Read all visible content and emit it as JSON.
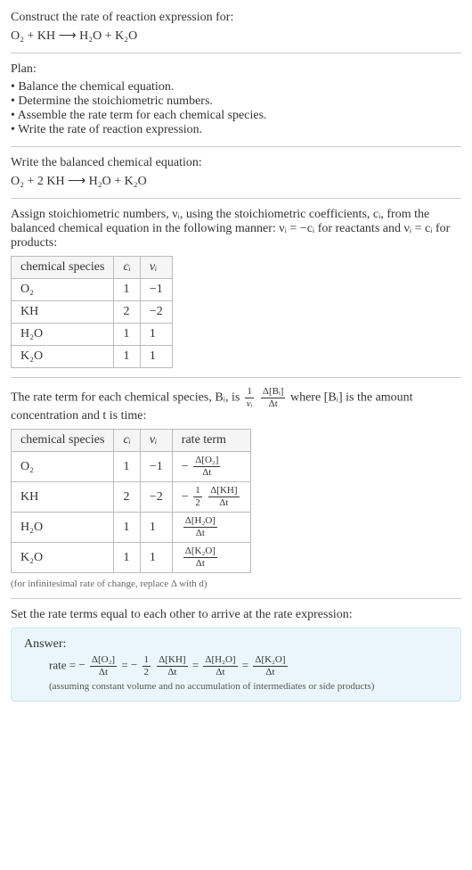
{
  "intro": {
    "line1": "Construct the rate of reaction expression for:",
    "equation": "O₂ + KH ⟶ H₂O + K₂O"
  },
  "plan": {
    "heading": "Plan:",
    "items": [
      "Balance the chemical equation.",
      "Determine the stoichiometric numbers.",
      "Assemble the rate term for each chemical species.",
      "Write the rate of reaction expression."
    ]
  },
  "balanced": {
    "heading": "Write the balanced chemical equation:",
    "equation": "O₂ + 2 KH ⟶ H₂O + K₂O"
  },
  "stoich": {
    "text1": "Assign stoichiometric numbers, νᵢ, using the stoichiometric coefficients, cᵢ, from the balanced chemical equation in the following manner: νᵢ = −cᵢ for reactants and νᵢ = cᵢ for products:",
    "headers": [
      "chemical species",
      "cᵢ",
      "νᵢ"
    ],
    "rows": [
      [
        "O₂",
        "1",
        "−1"
      ],
      [
        "KH",
        "2",
        "−2"
      ],
      [
        "H₂O",
        "1",
        "1"
      ],
      [
        "K₂O",
        "1",
        "1"
      ]
    ]
  },
  "rateterm": {
    "text_a": "The rate term for each chemical species, Bᵢ, is ",
    "frac1_num": "1",
    "frac1_den": "νᵢ",
    "frac2_num": "Δ[Bᵢ]",
    "frac2_den": "Δt",
    "text_b": " where [Bᵢ] is the amount concentration and t is time:",
    "headers": [
      "chemical species",
      "cᵢ",
      "νᵢ",
      "rate term"
    ],
    "rows": [
      {
        "sp": "O₂",
        "c": "1",
        "v": "−1",
        "sign": "−",
        "coef_num": "",
        "coef_den": "",
        "num": "Δ[O₂]",
        "den": "Δt"
      },
      {
        "sp": "KH",
        "c": "2",
        "v": "−2",
        "sign": "−",
        "coef_num": "1",
        "coef_den": "2",
        "num": "Δ[KH]",
        "den": "Δt"
      },
      {
        "sp": "H₂O",
        "c": "1",
        "v": "1",
        "sign": "",
        "coef_num": "",
        "coef_den": "",
        "num": "Δ[H₂O]",
        "den": "Δt"
      },
      {
        "sp": "K₂O",
        "c": "1",
        "v": "1",
        "sign": "",
        "coef_num": "",
        "coef_den": "",
        "num": "Δ[K₂O]",
        "den": "Δt"
      }
    ],
    "footnote": "(for infinitesimal rate of change, replace Δ with d)"
  },
  "final": {
    "heading": "Set the rate terms equal to each other to arrive at the rate expression:",
    "answer_label": "Answer:",
    "prefix": "rate = ",
    "terms": [
      {
        "sign": "−",
        "coef_num": "",
        "coef_den": "",
        "num": "Δ[O₂]",
        "den": "Δt"
      },
      {
        "sign": "−",
        "coef_num": "1",
        "coef_den": "2",
        "num": "Δ[KH]",
        "den": "Δt"
      },
      {
        "sign": "",
        "coef_num": "",
        "coef_den": "",
        "num": "Δ[H₂O]",
        "den": "Δt"
      },
      {
        "sign": "",
        "coef_num": "",
        "coef_den": "",
        "num": "Δ[K₂O]",
        "den": "Δt"
      }
    ],
    "note": "(assuming constant volume and no accumulation of intermediates or side products)"
  },
  "style": {
    "background": "#ffffff",
    "answer_bg": "#eaf6fb",
    "border": "#bbbbbb",
    "text": "#333333"
  }
}
